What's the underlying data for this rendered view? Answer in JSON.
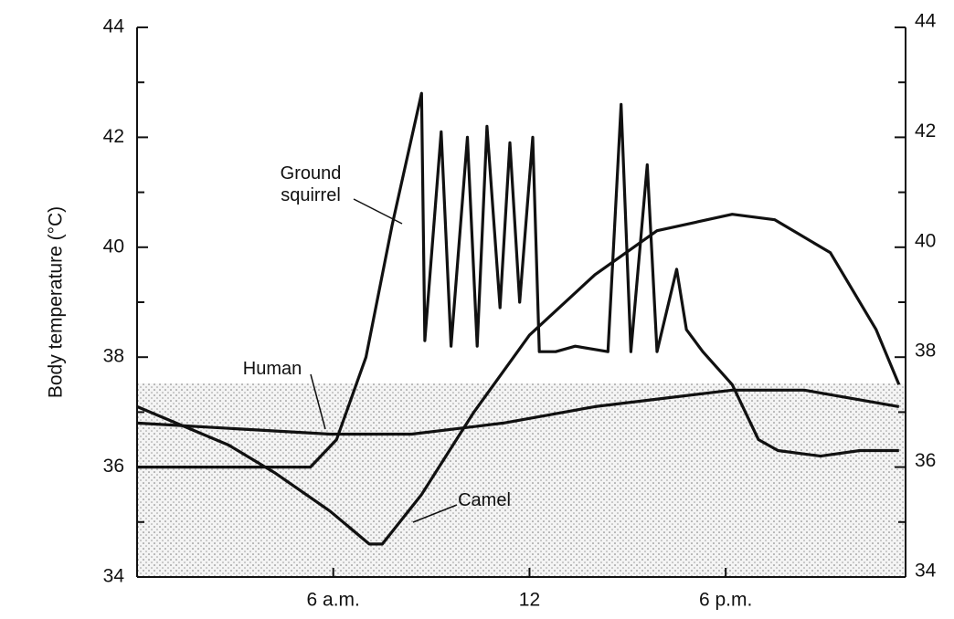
{
  "chart_data": {
    "type": "line",
    "y_label": "Body temperature (°C)",
    "xlim": [
      0,
      23.5
    ],
    "xticks": [
      {
        "value": 6,
        "label": "6 a.m."
      },
      12,
      {
        "value": 18,
        "label": "6 p.m."
      }
    ],
    "ylim": [
      34,
      44
    ],
    "yticks": [
      34,
      36,
      38,
      40,
      42,
      44
    ],
    "y2lim": [
      34,
      44
    ],
    "y2ticks": [
      34,
      36,
      38,
      40,
      42,
      44
    ],
    "series": [
      {
        "name": "Human",
        "color": "#111111",
        "x": [
          0,
          5.9,
          8.4,
          11.2,
          14,
          18.2,
          20.4,
          23.3
        ],
        "values": [
          36.8,
          36.6,
          36.6,
          36.8,
          37.1,
          37.4,
          37.4,
          37.1
        ]
      },
      {
        "name": "Ground squirrel",
        "color": "#111111",
        "x": [
          0,
          5.3,
          6.1,
          7,
          7.8,
          8.7,
          8.8,
          9.3,
          9.6,
          10.1,
          10.4,
          10.7,
          11.1,
          11.4,
          11.7,
          12.1,
          12.3,
          12.8,
          13.4,
          14.4,
          14.8,
          15.1,
          15.6,
          15.9,
          16.5,
          16.8,
          17.3,
          18.2,
          19,
          19.6,
          20.9,
          22.1,
          23.3
        ],
        "values": [
          36.0,
          36.0,
          36.5,
          38.0,
          40.4,
          42.8,
          38.3,
          42.1,
          38.2,
          42.0,
          38.2,
          42.2,
          38.9,
          41.9,
          39.0,
          42.0,
          38.1,
          38.1,
          38.2,
          38.1,
          42.6,
          38.1,
          41.5,
          38.1,
          39.6,
          38.5,
          38.1,
          37.5,
          36.5,
          36.3,
          36.2,
          36.3,
          36.3
        ]
      },
      {
        "name": "Camel",
        "color": "#111111",
        "x": [
          0,
          2.8,
          4.2,
          5.9,
          7.1,
          7.5,
          8.7,
          10.3,
          12,
          14,
          15.9,
          18.2,
          19.5,
          21.2,
          22.6,
          23.3
        ],
        "values": [
          37.1,
          36.4,
          35.9,
          35.2,
          34.6,
          34.6,
          35.5,
          37.0,
          38.4,
          39.5,
          40.3,
          40.6,
          40.5,
          39.9,
          38.5,
          37.5
        ]
      }
    ]
  }
}
